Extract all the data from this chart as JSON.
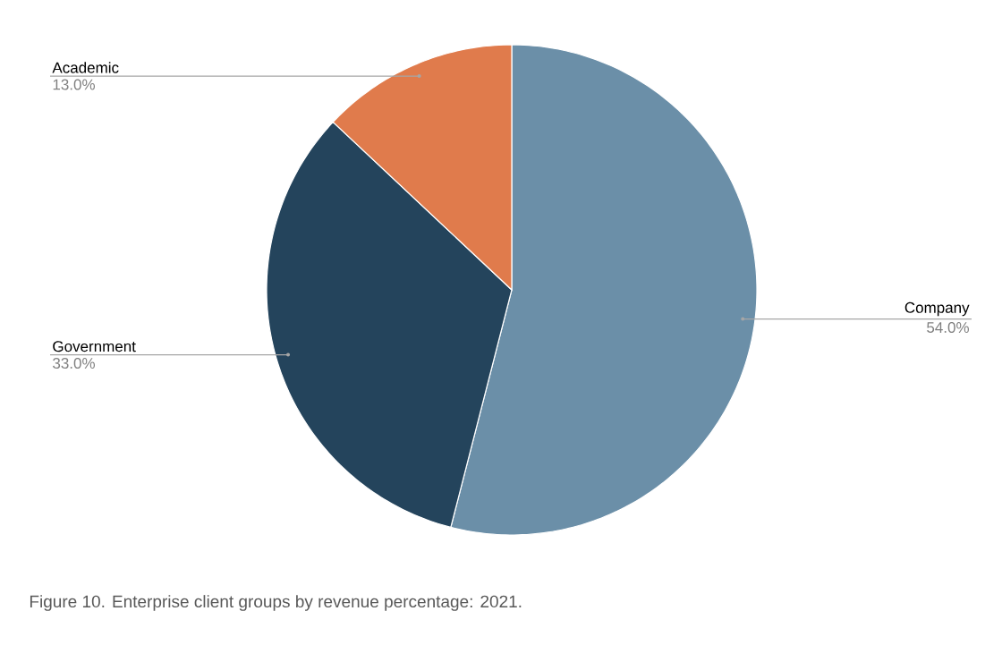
{
  "chart_data": {
    "type": "pie",
    "categories": [
      "Company",
      "Government",
      "Academic"
    ],
    "values": [
      54,
      33,
      13
    ],
    "colors": [
      "#6b8fa8",
      "#24445c",
      "#e07b4c"
    ],
    "value_labels": [
      "54.0%",
      "33.0%",
      "13.0%"
    ],
    "annotations": [
      "Figure 10. Enterprise client groups by revenue percentage: 2021."
    ]
  }
}
